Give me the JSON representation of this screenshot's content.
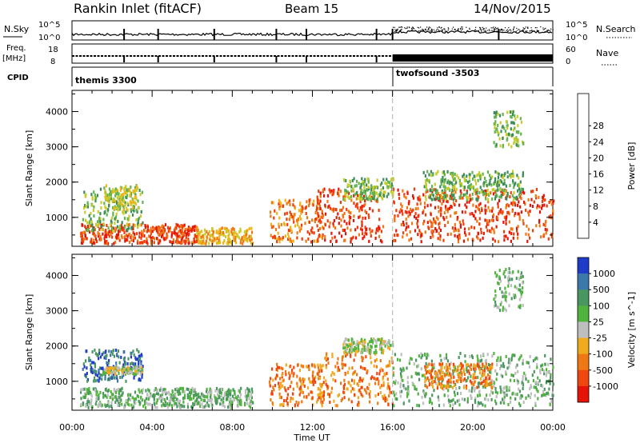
{
  "header": {
    "station": "Rankin Inlet (fitACF)",
    "beam": "Beam 15",
    "date": "14/Nov/2015"
  },
  "noise_panel": {
    "left_label": "N.Sky",
    "right_label": "N.Search",
    "left_ticks": [
      "10^5",
      "10^0"
    ],
    "right_ticks": [
      "10^5",
      "10^0"
    ]
  },
  "freq_panel": {
    "left_label": "Freq.",
    "left_unit": "[MHz]",
    "right_label": "Nave",
    "left_ticks": [
      "18",
      "8"
    ],
    "right_ticks": [
      "60",
      "0"
    ]
  },
  "cpid_panel": {
    "label": "CPID",
    "modes": [
      {
        "name": "themis 3300",
        "start_hour": 0
      },
      {
        "name": "twofsound -3503",
        "start_hour": 16
      }
    ]
  },
  "x_axis": {
    "title": "Time UT",
    "tick_labels": [
      "00:00",
      "04:00",
      "08:00",
      "12:00",
      "16:00",
      "20:00",
      "00:00"
    ],
    "range_hours": [
      0,
      24
    ]
  },
  "chart_data": [
    {
      "type": "heatmap",
      "parameter": "Power",
      "ylabel": "Slant Range [km]",
      "yticks": [
        1000,
        2000,
        3000,
        4000
      ],
      "ylim": [
        180,
        4600
      ],
      "colorbar_label": "Power [dB]",
      "colorbar_ticks": [
        "4",
        "8",
        "12",
        "16",
        "20",
        "24",
        "28"
      ],
      "colorbar_colors": [
        "#0a14ff",
        "#2a54b4",
        "#3c8c5a",
        "#64b450",
        "#c8cc28",
        "#f0b414",
        "#f07814",
        "#f03c0a",
        "#e61408"
      ],
      "regions": [
        {
          "t": [
            0.4,
            6.3
          ],
          "r": [
            250,
            800
          ],
          "level": 7
        },
        {
          "t": [
            0.5,
            3.5
          ],
          "r": [
            600,
            1800
          ],
          "level": 3
        },
        {
          "t": [
            1.5,
            3.3
          ],
          "r": [
            1200,
            1900
          ],
          "level": 4
        },
        {
          "t": [
            6.2,
            9.0
          ],
          "r": [
            250,
            700
          ],
          "level": 5
        },
        {
          "t": [
            9.8,
            12.5
          ],
          "r": [
            300,
            1500
          ],
          "level": 6
        },
        {
          "t": [
            12.2,
            15.5
          ],
          "r": [
            300,
            1800
          ],
          "level": 7
        },
        {
          "t": [
            13.5,
            16.0
          ],
          "r": [
            1500,
            2100
          ],
          "level": 3
        },
        {
          "t": [
            16.0,
            24.0
          ],
          "r": [
            300,
            1800
          ],
          "level": 7
        },
        {
          "t": [
            17.5,
            22.5
          ],
          "r": [
            1500,
            2300
          ],
          "level": 3
        },
        {
          "t": [
            21.0,
            22.5
          ],
          "r": [
            3000,
            4000
          ],
          "level": 3
        }
      ]
    },
    {
      "type": "heatmap",
      "parameter": "Velocity",
      "ylabel": "Slant Range [km]",
      "yticks": [
        1000,
        2000,
        3000,
        4000
      ],
      "ylim": [
        180,
        4600
      ],
      "colorbar_label": "Velocity [m s^-1]",
      "colorbar_ticks": [
        "1000",
        "500",
        "100",
        "25",
        "-25",
        "-100",
        "-500",
        "-1000"
      ],
      "colorbar_colors": [
        "#1e3cc8",
        "#3c78aa",
        "#4a9660",
        "#50b43c",
        "#bebebe",
        "#f0aa1e",
        "#f07814",
        "#f0460f",
        "#e61408"
      ],
      "regions": [
        {
          "t": [
            0.4,
            9.0
          ],
          "r": [
            250,
            800
          ],
          "level": 3
        },
        {
          "t": [
            0.5,
            3.5
          ],
          "r": [
            1000,
            1900
          ],
          "level": 1
        },
        {
          "t": [
            1.5,
            3.5
          ],
          "r": [
            1200,
            1400
          ],
          "level": 4
        },
        {
          "t": [
            9.8,
            12.5
          ],
          "r": [
            300,
            1500
          ],
          "level": 6
        },
        {
          "t": [
            12.2,
            16.0
          ],
          "r": [
            300,
            1800
          ],
          "level": 6
        },
        {
          "t": [
            13.5,
            16.0
          ],
          "r": [
            1800,
            2200
          ],
          "level": 4
        },
        {
          "t": [
            16.0,
            24.0
          ],
          "r": [
            300,
            1800
          ],
          "level": 3
        },
        {
          "t": [
            17.5,
            21.0
          ],
          "r": [
            800,
            1500
          ],
          "level": 6
        },
        {
          "t": [
            21.0,
            22.5
          ],
          "r": [
            3000,
            4200
          ],
          "level": 3
        }
      ]
    }
  ]
}
